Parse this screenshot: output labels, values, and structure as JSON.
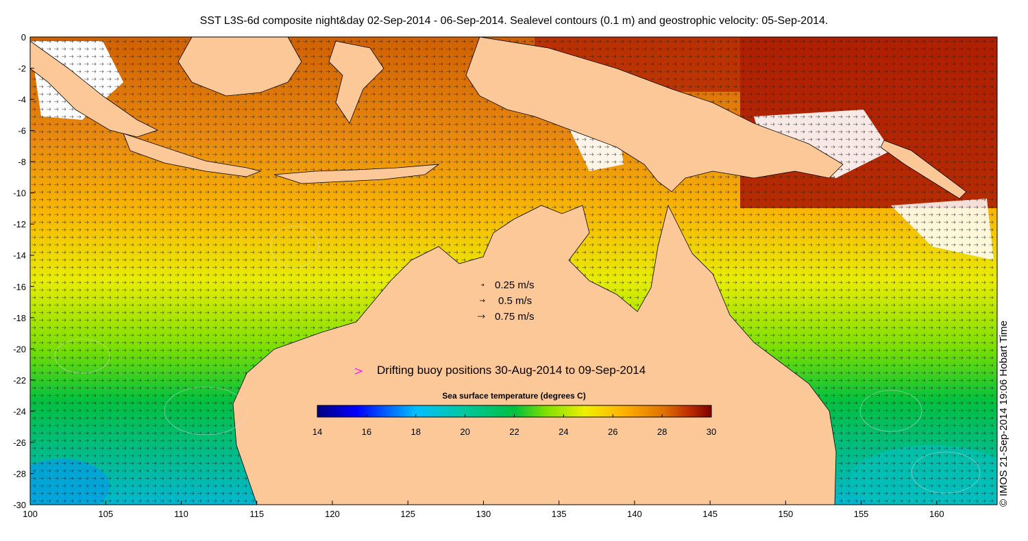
{
  "title": "SST L3S-6d composite night&day 02-Sep-2014 - 06-Sep-2014. Sealevel contours (0.1 m) and geostrophic velocity: 05-Sep-2014.",
  "map": {
    "lon_range": [
      100,
      164
    ],
    "lat_range": [
      -30,
      0
    ],
    "x_ticks": [
      "100",
      "105",
      "110",
      "115",
      "120",
      "125",
      "130",
      "135",
      "140",
      "145",
      "150",
      "155",
      "160"
    ],
    "y_ticks": [
      "0",
      "-2",
      "-4",
      "-6",
      "-8",
      "-10",
      "-12",
      "-14",
      "-16",
      "-18",
      "-20",
      "-22",
      "-24",
      "-26",
      "-28",
      "-30"
    ],
    "land_color": "#fcc898",
    "cloud_color": "#ffffff"
  },
  "velocity_legend": {
    "items": [
      "0.25 m/s",
      "0.5 m/s",
      "0.75 m/s"
    ]
  },
  "buoy_legend": {
    "label": "Drifting buoy positions 30-Aug-2014 to 09-Sep-2014",
    "color": "#ff00ff"
  },
  "colorbar": {
    "title": "Sea surface temperature (degrees C)",
    "ticks": [
      "14",
      "16",
      "18",
      "20",
      "22",
      "24",
      "26",
      "28",
      "30"
    ],
    "stops": [
      "#00007f",
      "#0000ff",
      "#00bfff",
      "#00c8a0",
      "#00c040",
      "#7fe000",
      "#f0f000",
      "#ffb000",
      "#e07000",
      "#c03000",
      "#800000"
    ]
  },
  "credit": "© IMOS 21-Sep-2014 19:06 Hobart Time"
}
